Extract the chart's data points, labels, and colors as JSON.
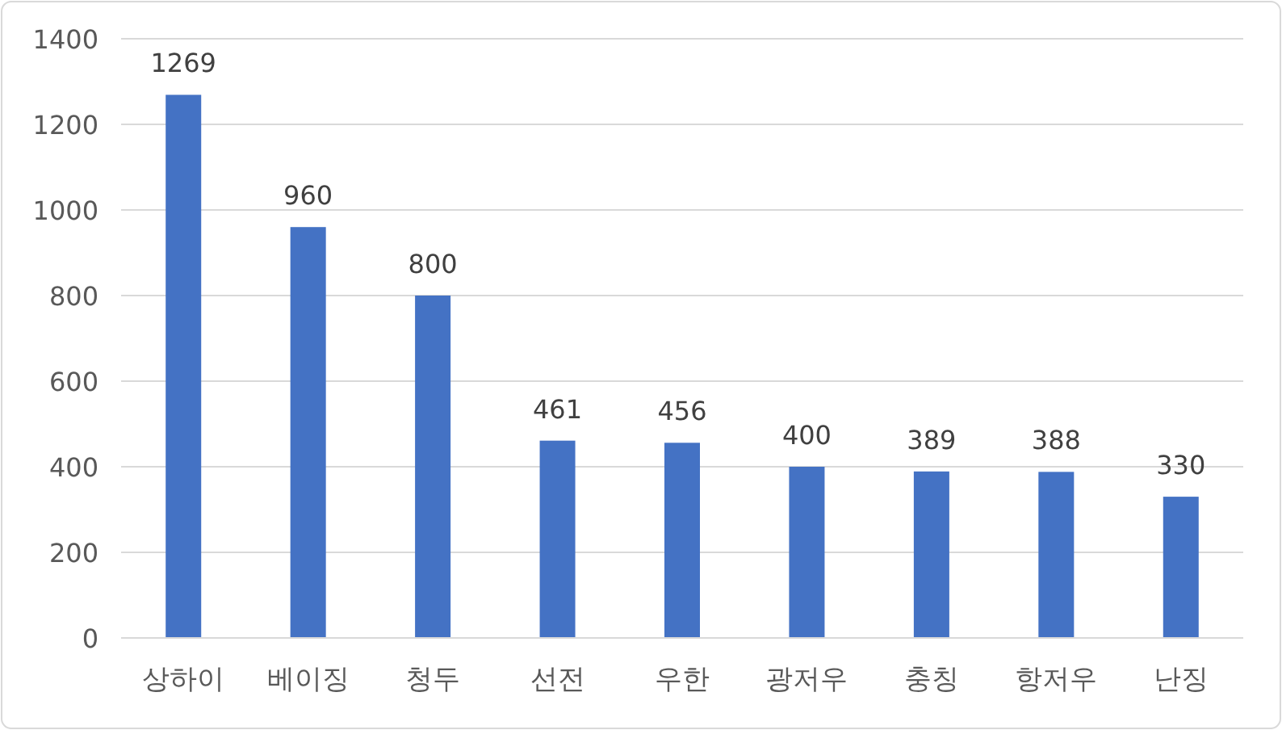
{
  "chart_data": {
    "type": "bar",
    "categories": [
      "상하이",
      "베이징",
      "청두",
      "선전",
      "우한",
      "광저우",
      "충칭",
      "항저우",
      "난징"
    ],
    "values": [
      1269,
      960,
      800,
      461,
      456,
      400,
      389,
      388,
      330
    ],
    "color": "#4472c4",
    "ylim": [
      0,
      1400
    ],
    "yticks": [
      0,
      200,
      400,
      600,
      800,
      1000,
      1200,
      1400
    ],
    "grid": "y",
    "data_labels": true
  }
}
